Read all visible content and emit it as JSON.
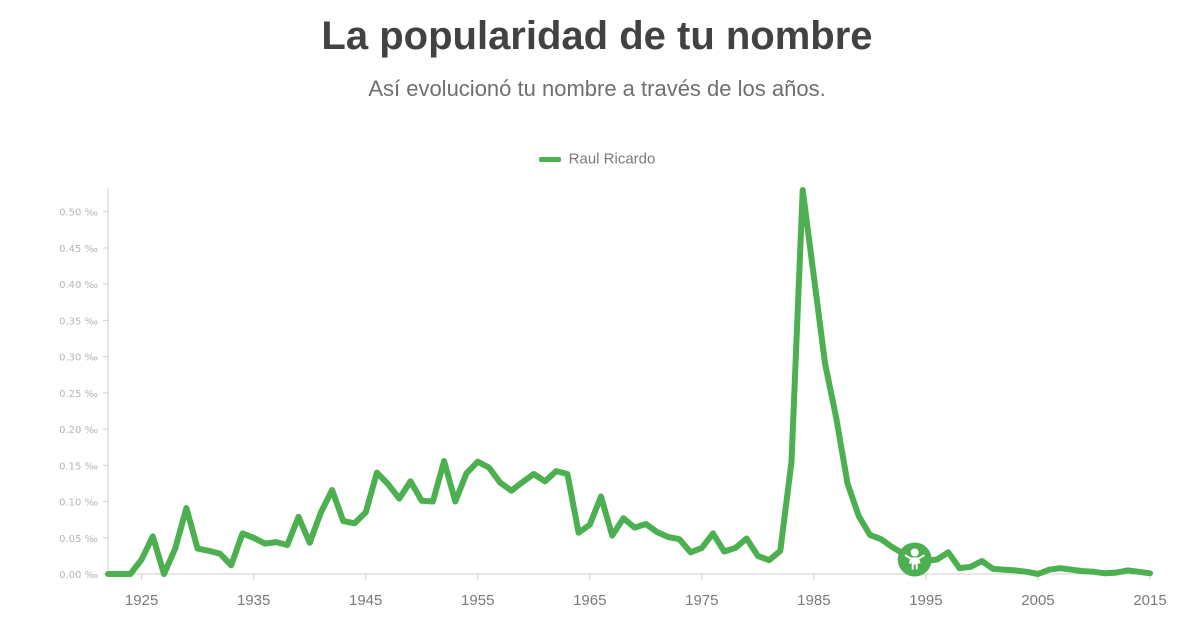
{
  "header": {
    "title": "La popularidad de tu nombre",
    "subtitle": "Así evolucionó tu nombre a través de los años."
  },
  "chart_data": {
    "type": "line",
    "title": "La popularidad de tu nombre",
    "subtitle": "Así evolucionó tu nombre a través de los años.",
    "legend_position": "top-center",
    "grid": false,
    "xlim": [
      1922,
      2015
    ],
    "ylim": [
      0,
      0.53
    ],
    "x_ticks": [
      "1925",
      "1935",
      "1945",
      "1955",
      "1965",
      "1975",
      "1985",
      "1995",
      "2005",
      "2015"
    ],
    "y_ticks": [
      "0.00 ‰",
      "0.05 ‰",
      "0.10 ‰",
      "0.15 ‰",
      "0.20 ‰",
      "0.25 ‰",
      "0.30 ‰",
      "0.35 ‰",
      "0.40 ‰",
      "0.45 ‰",
      "0.50 ‰"
    ],
    "marker": {
      "icon": "baby-icon",
      "year": 1994,
      "value": 0.02
    },
    "series": [
      {
        "name": "Raul Ricardo",
        "color": "#4caf50",
        "x": [
          1922,
          1923,
          1924,
          1925,
          1926,
          1927,
          1928,
          1929,
          1930,
          1931,
          1932,
          1933,
          1934,
          1935,
          1936,
          1937,
          1938,
          1939,
          1940,
          1941,
          1942,
          1943,
          1944,
          1945,
          1946,
          1947,
          1948,
          1949,
          1950,
          1951,
          1952,
          1953,
          1954,
          1955,
          1956,
          1957,
          1958,
          1959,
          1960,
          1961,
          1962,
          1963,
          1964,
          1965,
          1966,
          1967,
          1968,
          1969,
          1970,
          1971,
          1972,
          1973,
          1974,
          1975,
          1976,
          1977,
          1978,
          1979,
          1980,
          1981,
          1982,
          1983,
          1984,
          1985,
          1986,
          1987,
          1988,
          1989,
          1990,
          1991,
          1992,
          1993,
          1994,
          1995,
          1996,
          1997,
          1998,
          1999,
          2000,
          2001,
          2002,
          2003,
          2004,
          2005,
          2006,
          2007,
          2008,
          2009,
          2010,
          2011,
          2012,
          2013,
          2014,
          2015
        ],
        "values": [
          0.0,
          0.0,
          0.0,
          0.02,
          0.052,
          0.0,
          0.035,
          0.091,
          0.035,
          0.032,
          0.028,
          0.012,
          0.056,
          0.05,
          0.042,
          0.044,
          0.04,
          0.079,
          0.043,
          0.085,
          0.116,
          0.073,
          0.07,
          0.085,
          0.14,
          0.124,
          0.104,
          0.128,
          0.101,
          0.1,
          0.156,
          0.1,
          0.139,
          0.155,
          0.147,
          0.126,
          0.115,
          0.127,
          0.138,
          0.128,
          0.142,
          0.138,
          0.057,
          0.068,
          0.107,
          0.053,
          0.077,
          0.064,
          0.069,
          0.058,
          0.051,
          0.048,
          0.03,
          0.036,
          0.056,
          0.031,
          0.036,
          0.049,
          0.025,
          0.019,
          0.032,
          0.155,
          0.53,
          0.41,
          0.29,
          0.215,
          0.125,
          0.08,
          0.054,
          0.048,
          0.037,
          0.028,
          0.02,
          0.018,
          0.02,
          0.03,
          0.008,
          0.01,
          0.018,
          0.007,
          0.006,
          0.005,
          0.003,
          0.0,
          0.006,
          0.008,
          0.006,
          0.004,
          0.003,
          0.001,
          0.002,
          0.005,
          0.003,
          0.001
        ]
      }
    ]
  }
}
